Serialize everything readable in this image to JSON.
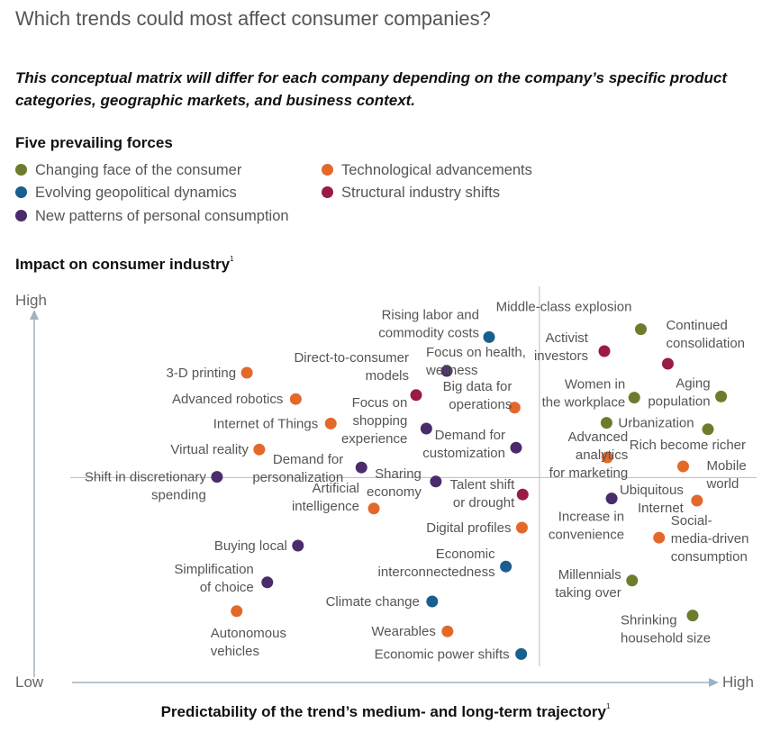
{
  "chart_data": {
    "type": "scatter",
    "title": "Which trends could most affect consumer companies?",
    "subtitle": "This conceptual matrix will differ for each company depending on the company’s specific product categories, geographic markets, and business context.",
    "legend_title": "Five prevailing forces",
    "ylabel": "Impact on consumer industry",
    "xlabel": "Predictability of the trend’s medium- and long-term trajectory",
    "footnote_mark": "1",
    "y_high": "High",
    "y_low": "Low",
    "x_high": "High",
    "xlim": [
      0,
      100
    ],
    "ylim": [
      0,
      100
    ],
    "quadrant_lines": {
      "x": 69.0,
      "y": 54.4
    },
    "forces": [
      {
        "key": "consumer",
        "name": "Changing face of the consumer",
        "color": "#6b7d2c"
      },
      {
        "key": "tech",
        "name": "Technological advancements",
        "color": "#e2692a"
      },
      {
        "key": "geo",
        "name": "Evolving geopolitical dynamics",
        "color": "#1a5f8e"
      },
      {
        "key": "structural",
        "name": "Structural industry shifts",
        "color": "#9a1c43"
      },
      {
        "key": "personal",
        "name": "New patterns of personal consumption",
        "color": "#4a2b6b"
      }
    ],
    "points": [
      {
        "label": [
          "Rising labor and",
          "commodity costs"
        ],
        "force": "geo",
        "x": 62.1,
        "y": 93.4
      },
      {
        "label": [
          "Middle-class explosion"
        ],
        "force": "consumer",
        "x": 82.9,
        "y": 95.6
      },
      {
        "label": [
          "Activist",
          "investors"
        ],
        "force": "structural",
        "x": 77.9,
        "y": 89.5
      },
      {
        "label": [
          "Continued",
          "consolidation"
        ],
        "force": "structural",
        "x": 86.6,
        "y": 86.0
      },
      {
        "label": [
          "Direct-to-consumer",
          "models"
        ],
        "force": "structural",
        "x": 52.1,
        "y": 77.3
      },
      {
        "label": [
          "Focus on health,",
          "wellness"
        ],
        "force": "personal",
        "x": 56.3,
        "y": 84.0
      },
      {
        "label": [
          "3-D printing"
        ],
        "force": "tech",
        "x": 28.9,
        "y": 83.5
      },
      {
        "label": [
          "Advanced robotics"
        ],
        "force": "tech",
        "x": 35.6,
        "y": 76.2
      },
      {
        "label": [
          "Big data for",
          "operations"
        ],
        "force": "tech",
        "x": 65.6,
        "y": 73.8
      },
      {
        "label": [
          "Women in",
          "the workplace"
        ],
        "force": "consumer",
        "x": 82.0,
        "y": 76.6
      },
      {
        "label": [
          "Aging",
          "population"
        ],
        "force": "consumer",
        "x": 93.9,
        "y": 76.9
      },
      {
        "label": [
          "Internet of Things"
        ],
        "force": "tech",
        "x": 40.4,
        "y": 69.4
      },
      {
        "label": [
          "Focus on",
          "shopping",
          "experience"
        ],
        "force": "personal",
        "x": 53.5,
        "y": 68.0
      },
      {
        "label": [
          "Urbanization"
        ],
        "force": "consumer",
        "x": 78.2,
        "y": 69.6
      },
      {
        "label": [
          "Rich become richer"
        ],
        "force": "consumer",
        "x": 92.1,
        "y": 67.8
      },
      {
        "label": [
          "Virtual reality"
        ],
        "force": "tech",
        "x": 30.6,
        "y": 62.2
      },
      {
        "label": [
          "Demand for",
          "customization"
        ],
        "force": "personal",
        "x": 65.8,
        "y": 62.7
      },
      {
        "label": [
          "Advanced",
          "analytics",
          "for marketing"
        ],
        "force": "tech",
        "x": 78.3,
        "y": 60.0
      },
      {
        "label": [
          "Demand for",
          "personalization"
        ],
        "force": "personal",
        "x": 44.6,
        "y": 57.2
      },
      {
        "label": [
          "Mobile",
          "world"
        ],
        "force": "tech",
        "x": 88.7,
        "y": 57.5
      },
      {
        "label": [
          "Shift in discretionary",
          "spending"
        ],
        "force": "personal",
        "x": 24.8,
        "y": 54.6
      },
      {
        "label": [
          "Sharing",
          "economy"
        ],
        "force": "personal",
        "x": 54.8,
        "y": 53.3
      },
      {
        "label": [
          "Talent shift",
          "or drought"
        ],
        "force": "structural",
        "x": 66.7,
        "y": 49.7
      },
      {
        "label": [
          "Ubiquitous",
          "Internet"
        ],
        "force": "tech",
        "x": 90.6,
        "y": 48.0
      },
      {
        "label": [
          "Increase in",
          "convenience"
        ],
        "force": "personal",
        "x": 78.9,
        "y": 48.6
      },
      {
        "label": [
          "Artificial",
          "intelligence"
        ],
        "force": "tech",
        "x": 46.3,
        "y": 45.8
      },
      {
        "label": [
          "Digital profiles"
        ],
        "force": "tech",
        "x": 66.6,
        "y": 40.5
      },
      {
        "label": [
          "Social-",
          "media-driven",
          "consumption"
        ],
        "force": "tech",
        "x": 85.4,
        "y": 37.7
      },
      {
        "label": [
          "Buying local"
        ],
        "force": "personal",
        "x": 35.9,
        "y": 35.5
      },
      {
        "label": [
          "Economic",
          "interconnectedness"
        ],
        "force": "geo",
        "x": 64.4,
        "y": 29.7
      },
      {
        "label": [
          "Millennials",
          "taking over"
        ],
        "force": "consumer",
        "x": 81.7,
        "y": 25.8
      },
      {
        "label": [
          "Simplification",
          "of choice"
        ],
        "force": "personal",
        "x": 31.7,
        "y": 25.3
      },
      {
        "label": [
          "Climate change"
        ],
        "force": "geo",
        "x": 54.3,
        "y": 20.0
      },
      {
        "label": [
          "Autonomous",
          "vehicles"
        ],
        "force": "tech",
        "x": 27.5,
        "y": 17.3
      },
      {
        "label": [
          "Shrinking",
          "household size"
        ],
        "force": "consumer",
        "x": 90.0,
        "y": 16.1
      },
      {
        "label": [
          "Wearables"
        ],
        "force": "tech",
        "x": 56.4,
        "y": 11.7
      },
      {
        "label": [
          "Economic power shifts"
        ],
        "force": "geo",
        "x": 66.5,
        "y": 5.4
      }
    ]
  }
}
